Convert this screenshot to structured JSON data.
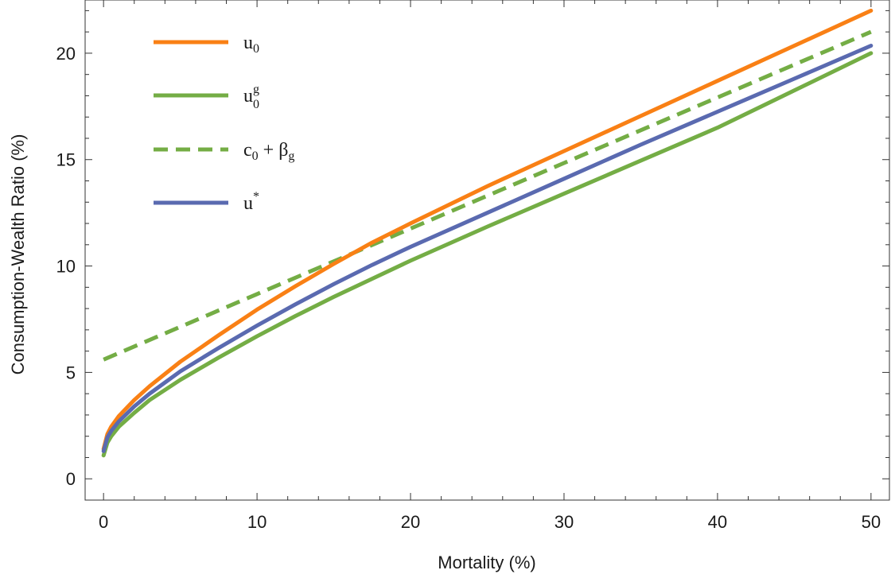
{
  "chart_data": {
    "type": "line",
    "xlabel": "Mortality (%)",
    "ylabel": "Consumption-Wealth Ratio (%)",
    "xlim": [
      -1.2,
      51.2
    ],
    "ylim": [
      -1.0,
      22.5
    ],
    "x_ticks": [
      0,
      10,
      20,
      30,
      40,
      50
    ],
    "y_ticks": [
      0,
      5,
      10,
      15,
      20
    ],
    "grid": false,
    "legend_position": "top-left",
    "series": [
      {
        "name": "u",
        "name_sub": "0",
        "name_sup": "",
        "color": "#F98015",
        "style": "solid",
        "points": [
          [
            0,
            1.4
          ],
          [
            0.25,
            2.1
          ],
          [
            0.5,
            2.45
          ],
          [
            1,
            2.95
          ],
          [
            2,
            3.7
          ],
          [
            3,
            4.35
          ],
          [
            5,
            5.5
          ],
          [
            7.5,
            6.75
          ],
          [
            10,
            7.95
          ],
          [
            12.5,
            9.05
          ],
          [
            15,
            10.1
          ],
          [
            17.5,
            11.1
          ],
          [
            20,
            12.0
          ],
          [
            25,
            13.75
          ],
          [
            30,
            15.4
          ],
          [
            35,
            17.05
          ],
          [
            40,
            18.7
          ],
          [
            45,
            20.35
          ],
          [
            50,
            22.0
          ]
        ]
      },
      {
        "name": "u",
        "name_sub": "0",
        "name_sup": "g",
        "color": "#74AD45",
        "style": "solid",
        "points": [
          [
            0,
            1.1
          ],
          [
            0.25,
            1.7
          ],
          [
            0.5,
            2.0
          ],
          [
            1,
            2.45
          ],
          [
            2,
            3.1
          ],
          [
            3,
            3.7
          ],
          [
            5,
            4.65
          ],
          [
            7.5,
            5.7
          ],
          [
            10,
            6.7
          ],
          [
            12.5,
            7.65
          ],
          [
            15,
            8.55
          ],
          [
            17.5,
            9.4
          ],
          [
            20,
            10.25
          ],
          [
            25,
            11.85
          ],
          [
            30,
            13.4
          ],
          [
            35,
            14.95
          ],
          [
            40,
            16.5
          ],
          [
            45,
            18.25
          ],
          [
            50,
            20.0
          ]
        ]
      },
      {
        "name": "c",
        "name_sub": "0",
        "name_suffix": " + β",
        "name_suffix_sub": "g",
        "color": "#74AD45",
        "style": "dashed",
        "points": [
          [
            0,
            5.6
          ],
          [
            10,
            8.68
          ],
          [
            20,
            11.76
          ],
          [
            30,
            14.84
          ],
          [
            40,
            17.92
          ],
          [
            50,
            21.0
          ]
        ]
      },
      {
        "name": "u",
        "name_sub": "",
        "name_sup": "*",
        "color": "#5A6AB0",
        "style": "solid",
        "points": [
          [
            0,
            1.3
          ],
          [
            0.25,
            1.95
          ],
          [
            0.5,
            2.25
          ],
          [
            1,
            2.7
          ],
          [
            2,
            3.4
          ],
          [
            3,
            4.0
          ],
          [
            5,
            5.05
          ],
          [
            7.5,
            6.15
          ],
          [
            10,
            7.2
          ],
          [
            12.5,
            8.2
          ],
          [
            15,
            9.15
          ],
          [
            17.5,
            10.05
          ],
          [
            20,
            10.9
          ],
          [
            25,
            12.5
          ],
          [
            30,
            14.1
          ],
          [
            35,
            15.7
          ],
          [
            40,
            17.25
          ],
          [
            45,
            18.8
          ],
          [
            50,
            20.35
          ]
        ]
      }
    ]
  }
}
